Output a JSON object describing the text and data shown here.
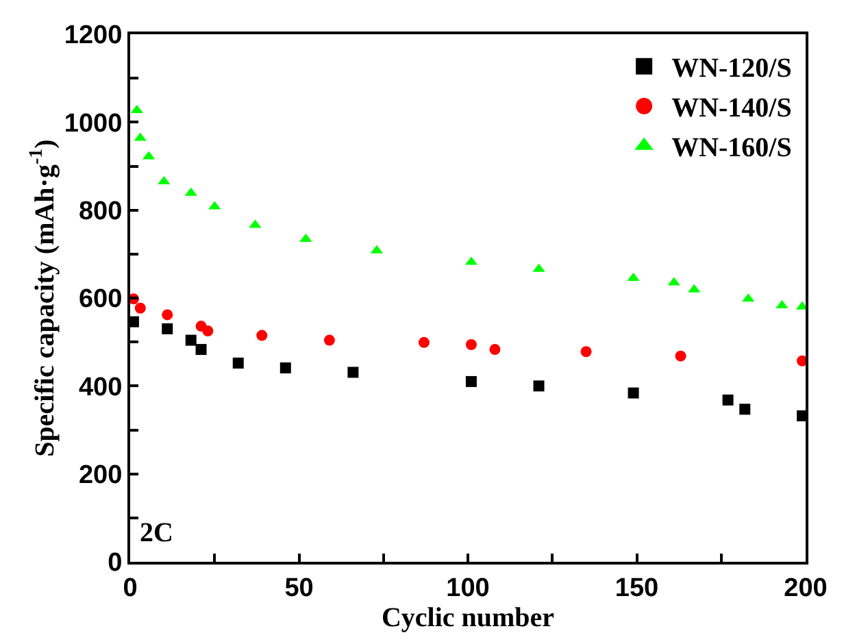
{
  "chart_data": {
    "type": "scatter",
    "xlabel": "Cyclic number",
    "ylabel": "Specific capacity (mAh·g$^{-1}$)",
    "xlim": [
      0,
      200
    ],
    "ylim": [
      0,
      1200
    ],
    "xticks": [
      0,
      {
        "value": 25,
        "label": null
      },
      50,
      {
        "value": 75,
        "label": null
      },
      100,
      {
        "value": 125,
        "label": null
      },
      150,
      {
        "value": 175,
        "label": null
      },
      200
    ],
    "yticks": [
      0,
      {
        "value": 100,
        "label": null
      },
      200,
      {
        "value": 300,
        "label": null
      },
      400,
      {
        "value": 500,
        "label": null
      },
      600,
      {
        "value": 700,
        "label": null
      },
      800,
      {
        "value": 900,
        "label": null
      },
      1000,
      {
        "value": 1100,
        "label": null
      },
      1200
    ],
    "legend": "top right",
    "annotations": [
      "2C"
    ],
    "series": [
      {
        "name": "WN-120/S",
        "color": "#000000",
        "marker": "square",
        "x": [
          1,
          11,
          18,
          21,
          32,
          46,
          66,
          101,
          121,
          149,
          177,
          182,
          199
        ],
        "values": [
          546,
          530,
          504,
          483,
          452,
          441,
          431,
          410,
          400,
          384,
          368,
          347,
          332
        ]
      },
      {
        "name": "WN-140/S",
        "color": "#ff0000",
        "marker": "circle",
        "x": [
          1,
          3,
          11,
          21,
          23,
          39,
          59,
          87,
          101,
          108,
          135,
          163,
          199
        ],
        "values": [
          598,
          577,
          562,
          536,
          525,
          515,
          504,
          499,
          494,
          483,
          478,
          468,
          457
        ]
      },
      {
        "name": "WN-160/S",
        "color": "#00ff00",
        "marker": "triangle",
        "x": [
          2,
          3,
          5.5,
          10,
          18,
          25,
          37,
          52,
          73,
          101,
          121,
          149,
          161,
          167,
          183,
          193,
          199
        ],
        "values": [
          1027,
          964,
          922,
          865,
          839,
          808,
          766,
          734,
          708,
          682,
          666,
          645,
          635,
          619,
          598,
          583,
          580
        ]
      }
    ]
  }
}
